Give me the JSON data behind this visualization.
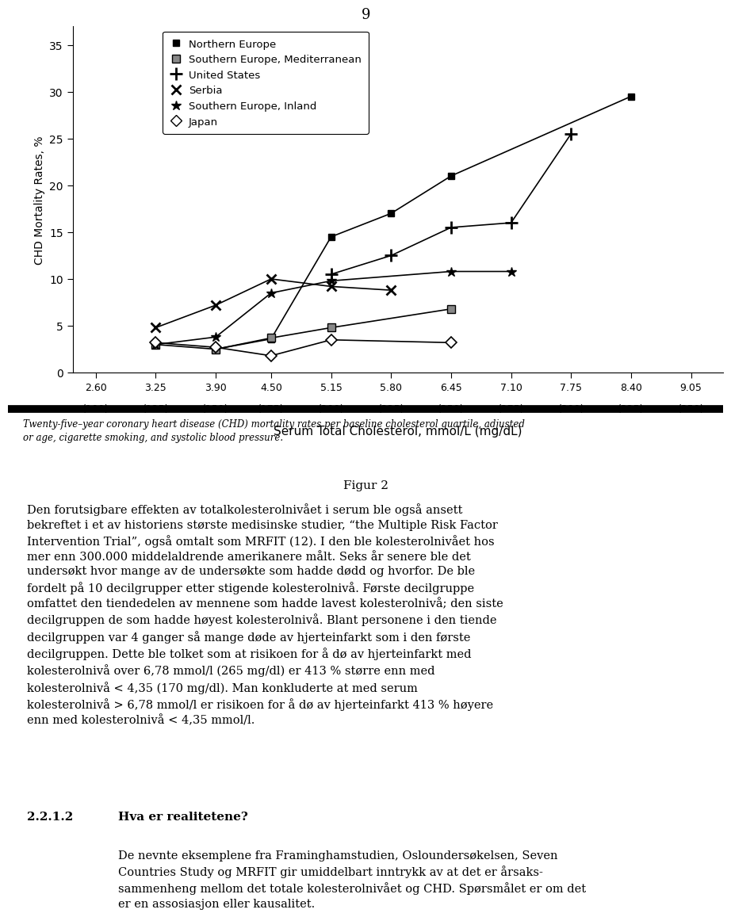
{
  "page_number": "9",
  "x_ticks": [
    2.6,
    3.25,
    3.9,
    4.5,
    5.15,
    5.8,
    6.45,
    7.1,
    7.75,
    8.4,
    9.05
  ],
  "x_tick_labels_top": [
    "2.60",
    "3.25",
    "3.90",
    "4.50",
    "5.15",
    "5.80",
    "6.45",
    "7.10",
    "7.75",
    "8.40",
    "9.05"
  ],
  "x_tick_labels_bottom": [
    "(100)",
    "(125)",
    "(150)",
    "(175)",
    "(200)",
    "(225)",
    "(250)",
    "(275)",
    "(300)",
    "(325)",
    "(350)"
  ],
  "xlabel": "Serum Total Cholesterol, mmol/L (mg/dL)",
  "ylabel": "CHD Mortality Rates, %",
  "ylim": [
    0,
    37
  ],
  "yticks": [
    0,
    5,
    10,
    15,
    20,
    25,
    30,
    35
  ],
  "series": {
    "northern_europe": {
      "label": "Northern Europe",
      "x": [
        3.9,
        4.5,
        5.15,
        5.8,
        6.45,
        8.4
      ],
      "y": [
        2.5,
        3.6,
        14.5,
        17.0,
        21.0,
        29.5
      ]
    },
    "southern_europe_med": {
      "label": "Southern Europe, Mediterranean",
      "x": [
        3.25,
        3.9,
        4.5,
        5.15,
        6.45
      ],
      "y": [
        3.0,
        2.5,
        3.7,
        4.8,
        6.8
      ]
    },
    "united_states": {
      "label": "United States",
      "x": [
        5.15,
        5.8,
        6.45,
        7.1,
        7.75
      ],
      "y": [
        10.5,
        12.5,
        15.5,
        16.0,
        25.5
      ]
    },
    "serbia": {
      "label": "Serbia",
      "x": [
        3.25,
        3.9,
        4.5,
        5.15,
        5.8
      ],
      "y": [
        4.8,
        7.2,
        10.0,
        9.2,
        8.8
      ]
    },
    "southern_europe_inland": {
      "label": "Southern Europe, Inland",
      "x": [
        3.25,
        3.9,
        4.5,
        5.15,
        6.45,
        7.1
      ],
      "y": [
        3.0,
        3.8,
        8.5,
        9.8,
        10.8,
        10.8
      ]
    },
    "japan": {
      "label": "Japan",
      "x": [
        3.25,
        3.9,
        4.5,
        5.15,
        6.45
      ],
      "y": [
        3.2,
        2.7,
        1.8,
        3.5,
        3.2
      ]
    }
  },
  "caption_italic": "Twenty-five–year coronary heart disease (CHD) mortality rates per baseline cholesterol quartile, adjusted\nor age, cigarette smoking, and systolic blood pressure.",
  "figur_label": "Figur 2",
  "para1_line1": "Den forutsigbare effekten av totalkolesterolnivået i serum ble også ansett",
  "para1_line2": "bekreftet i et av historiens største medisinske studier, “the Multiple Risk Factor",
  "para1_line3": "Intervention Trial”, også omtalt som MRFIT (12). I den ble kolesterolnivået hos",
  "para1_line4": "mer enn 300.000 middelaldrende amerikanere målt. Seks år senere ble det",
  "para1_line5": "undersøkt hvor mange av de undersøkte som hadde dødd og hvorfor. De ble",
  "para1_line6": "fordelt på 10 decilgrupper etter stigende kolesterolnivå. Første decilgruppe",
  "para1_line7": "omfattet den tiendedelen av mennene som hadde lavest kolesterolnivå; den siste",
  "para1_line8": "decilgruppen de som hadde høyest kolesterolnivå. Blant personene i den tiende",
  "para1_line9": "decilgruppen var 4 ganger så mange døde av hjerteinfarkt som i den første",
  "para1_line10": "decilgruppen. Dette ble tolket som at risikoen for å dø av hjerteinfarkt med",
  "para1_line11": "kolesterolnivå over 6,78 mmol/l (265 mg/dl) er 413 % større enn med",
  "para1_line12": "kolesterolnivå < 4,35 (170 mg/dl). Man konkluderte at med serum",
  "para1_line13": "kolesterolnivå > 6,78 mmol/l er risikoen for å dø av hjerteinfarkt 413 % høyere",
  "para1_line14": "enn med kolesterolnivå < 4,35 mmol/l.",
  "section_number": "2.2.1.2",
  "section_title": "Hva er realitetene?",
  "para2_line1": "De nevnte eksemplene fra Framinghamstudien, Osloundersøkelsen, Seven",
  "para2_line2": "Countries Study og MRFIT gir umiddelbart inntrykk av at det er årsaks-",
  "para2_line3": "sammenheng mellom det totale kolesterolnivået og CHD. Spørsmålet er om det",
  "para2_line4": "er en assosiasjon eller kausalitet."
}
